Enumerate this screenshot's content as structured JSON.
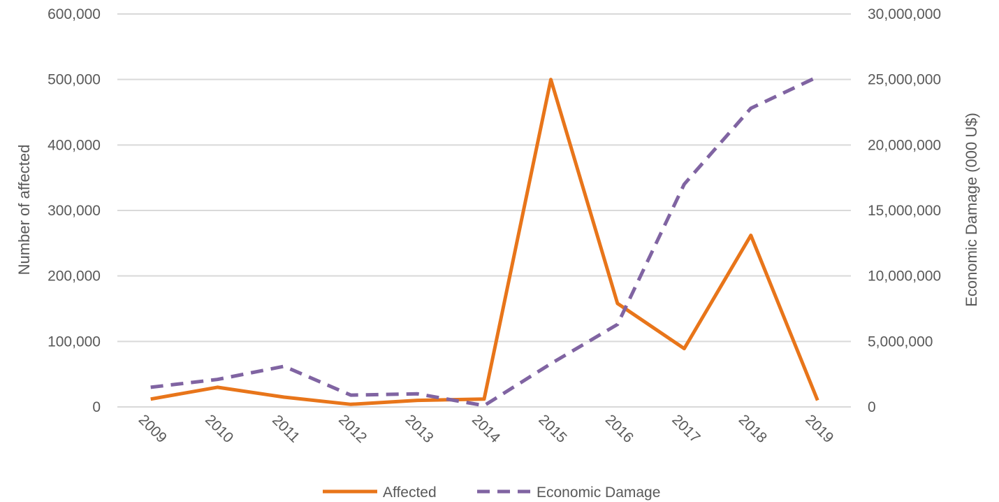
{
  "chart_data": {
    "type": "line",
    "categories": [
      "2009",
      "2010",
      "2011",
      "2012",
      "2013",
      "2014",
      "2015",
      "2016",
      "2017",
      "2018",
      "2019"
    ],
    "series": [
      {
        "name": "Affected",
        "axis": "left",
        "color": "#e8751a",
        "style": "solid",
        "values": [
          12000,
          30000,
          15000,
          4000,
          10000,
          12000,
          500000,
          158000,
          89000,
          262000,
          10000
        ]
      },
      {
        "name": "Economic Damage",
        "axis": "right",
        "color": "#8064a2",
        "style": "dashed",
        "values": [
          1500000,
          2100000,
          3100000,
          900000,
          1000000,
          100000,
          3300000,
          6300000,
          17000000,
          22800000,
          25200000
        ]
      }
    ],
    "ylabel": "Number of affected",
    "ylabel_right": "Economic Damage (000 U$)",
    "ylim": [
      0,
      600000
    ],
    "ylim_right": [
      0,
      30000000
    ],
    "yticks": [
      "0",
      "100,000",
      "200,000",
      "300,000",
      "400,000",
      "500,000",
      "600,000"
    ],
    "yticks_right": [
      "0",
      "5,000,000",
      "10,000,000",
      "15,000,000",
      "20,000,000",
      "25,000,000",
      "30,000,000"
    ],
    "grid": true,
    "legend_position": "bottom-center"
  }
}
